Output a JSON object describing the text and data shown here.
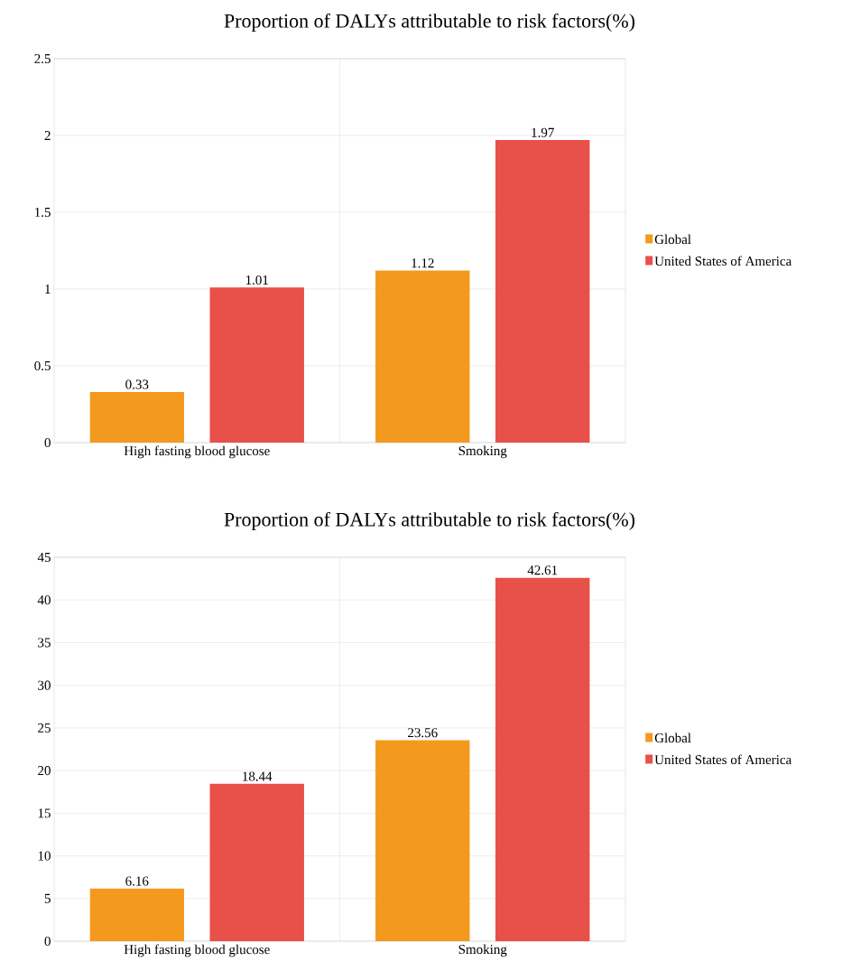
{
  "chart_data": [
    {
      "type": "bar",
      "title": "Proportion of DALYs attributable to risk factors(%)",
      "categories": [
        "High fasting blood glucose",
        "Smoking"
      ],
      "series": [
        {
          "name": "Global",
          "color": "#f39a1e",
          "values": [
            0.33,
            1.12
          ]
        },
        {
          "name": "United States of America",
          "color": "#e8504a",
          "values": [
            1.01,
            1.97
          ]
        }
      ],
      "ylim": [
        0,
        2.5
      ],
      "yticks": [
        0,
        0.5,
        1,
        1.5,
        2,
        2.5
      ],
      "grid": true,
      "legend": "right",
      "data_labels": true
    },
    {
      "type": "bar",
      "title": "Proportion of DALYs attributable to risk factors(%)",
      "categories": [
        "High fasting blood glucose",
        "Smoking"
      ],
      "series": [
        {
          "name": "Global",
          "color": "#f39a1e",
          "values": [
            6.16,
            23.56
          ]
        },
        {
          "name": "United States of America",
          "color": "#e8504a",
          "values": [
            18.44,
            42.61
          ]
        }
      ],
      "ylim": [
        0,
        45
      ],
      "yticks": [
        0,
        5,
        10,
        15,
        20,
        25,
        30,
        35,
        40,
        45
      ],
      "grid": true,
      "legend": "right",
      "data_labels": true
    }
  ]
}
